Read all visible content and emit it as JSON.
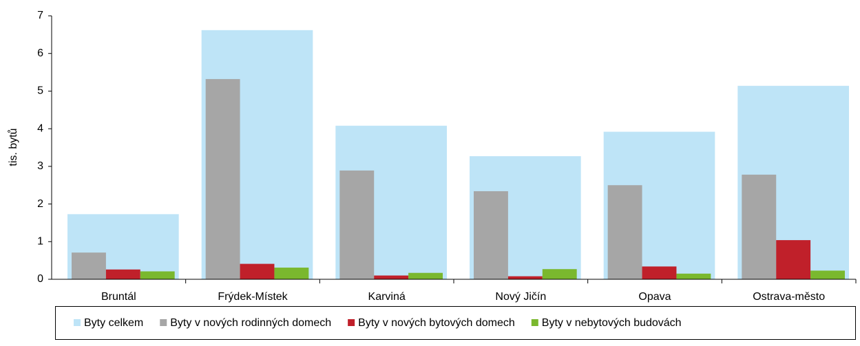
{
  "chart_data": {
    "type": "bar",
    "y_label": "tis. bytů",
    "categories": [
      "Bruntál",
      "Frýdek-Místek",
      "Karviná",
      "Nový Jičín",
      "Opava",
      "Ostrava-město"
    ],
    "series": [
      {
        "name": "Byty celkem",
        "color": "#bee4f7",
        "values": [
          1.73,
          6.62,
          4.08,
          3.27,
          3.92,
          5.14
        ]
      },
      {
        "name": "Byty v nových rodinných domech",
        "color": "#a6a6a6",
        "values": [
          0.71,
          5.32,
          2.89,
          2.34,
          2.5,
          2.78
        ]
      },
      {
        "name": "Byty v nových bytových domech",
        "color": "#c0202a",
        "values": [
          0.26,
          0.41,
          0.1,
          0.08,
          0.34,
          1.04
        ]
      },
      {
        "name": "Byty v nebytových budovách",
        "color": "#7ab82e",
        "values": [
          0.21,
          0.31,
          0.17,
          0.27,
          0.15,
          0.23
        ]
      }
    ],
    "ylim": [
      0,
      7
    ],
    "yticks": [
      0,
      1,
      2,
      3,
      4,
      5,
      6,
      7
    ],
    "legend": "bottom"
  }
}
